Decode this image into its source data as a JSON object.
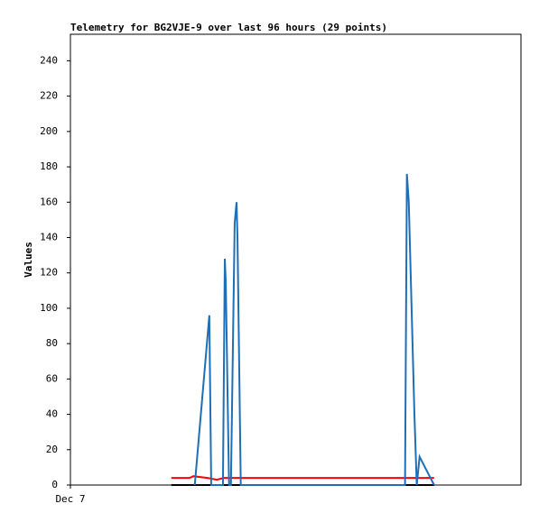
{
  "chart_data": {
    "type": "line",
    "title": "Telemetry for BG2VJE-9 over last 96 hours (29 points)",
    "y_label": "Values",
    "xlim": [
      0,
      96
    ],
    "xticks": [
      {
        "value": 0,
        "label": "Dec 7"
      }
    ],
    "ylim": [
      0,
      255
    ],
    "yticks": [
      0,
      20,
      40,
      60,
      80,
      100,
      120,
      140,
      160,
      180,
      200,
      220,
      240
    ],
    "series": [
      {
        "color": "#000000",
        "x": [
          21.5,
          77.5
        ],
        "values": [
          0,
          0
        ]
      },
      {
        "color": "#ff0000",
        "x": [
          21.5,
          25.4,
          26.2,
          29.2,
          31.2,
          32.7,
          77.5
        ],
        "values": [
          4,
          4,
          5,
          4,
          3,
          4,
          4
        ]
      },
      {
        "color": "#1f6fb8",
        "x": [
          26.5,
          29.6,
          30.0,
          32.5,
          32.9,
          33.1,
          33.8,
          34.2,
          35.0,
          35.4,
          35.6,
          36.3,
          71.3,
          71.7,
          72.1,
          72.7,
          73.3,
          73.8,
          74.4,
          77.5
        ],
        "values": [
          0,
          96,
          0,
          0,
          128,
          115,
          0,
          0,
          148,
          160,
          140,
          0,
          0,
          176,
          160,
          100,
          40,
          0,
          16,
          0
        ]
      }
    ]
  }
}
